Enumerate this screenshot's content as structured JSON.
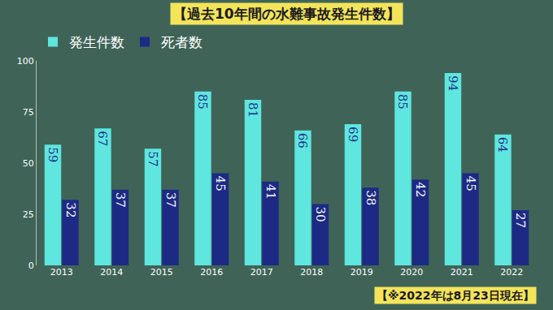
{
  "chart_data": {
    "type": "bar",
    "title": "【過去10年間の水難事故発生件数】",
    "categories": [
      "2013",
      "2014",
      "2015",
      "2016",
      "2017",
      "2018",
      "2019",
      "2020",
      "2021",
      "2022"
    ],
    "series": [
      {
        "name": "発生件数",
        "color": "#5ee6df",
        "values": [
          59,
          67,
          57,
          85,
          81,
          66,
          69,
          85,
          94,
          64
        ]
      },
      {
        "name": "死者数",
        "color": "#1c2a86",
        "values": [
          32,
          37,
          37,
          45,
          41,
          30,
          38,
          42,
          45,
          27
        ]
      }
    ],
    "ylim": [
      0,
      100
    ],
    "yticks": [
      0,
      25,
      50,
      75,
      100
    ],
    "grid": false,
    "data_labels": true,
    "legend": "top-left",
    "annotations": [
      "【※2022年は8月23日現在】"
    ]
  }
}
